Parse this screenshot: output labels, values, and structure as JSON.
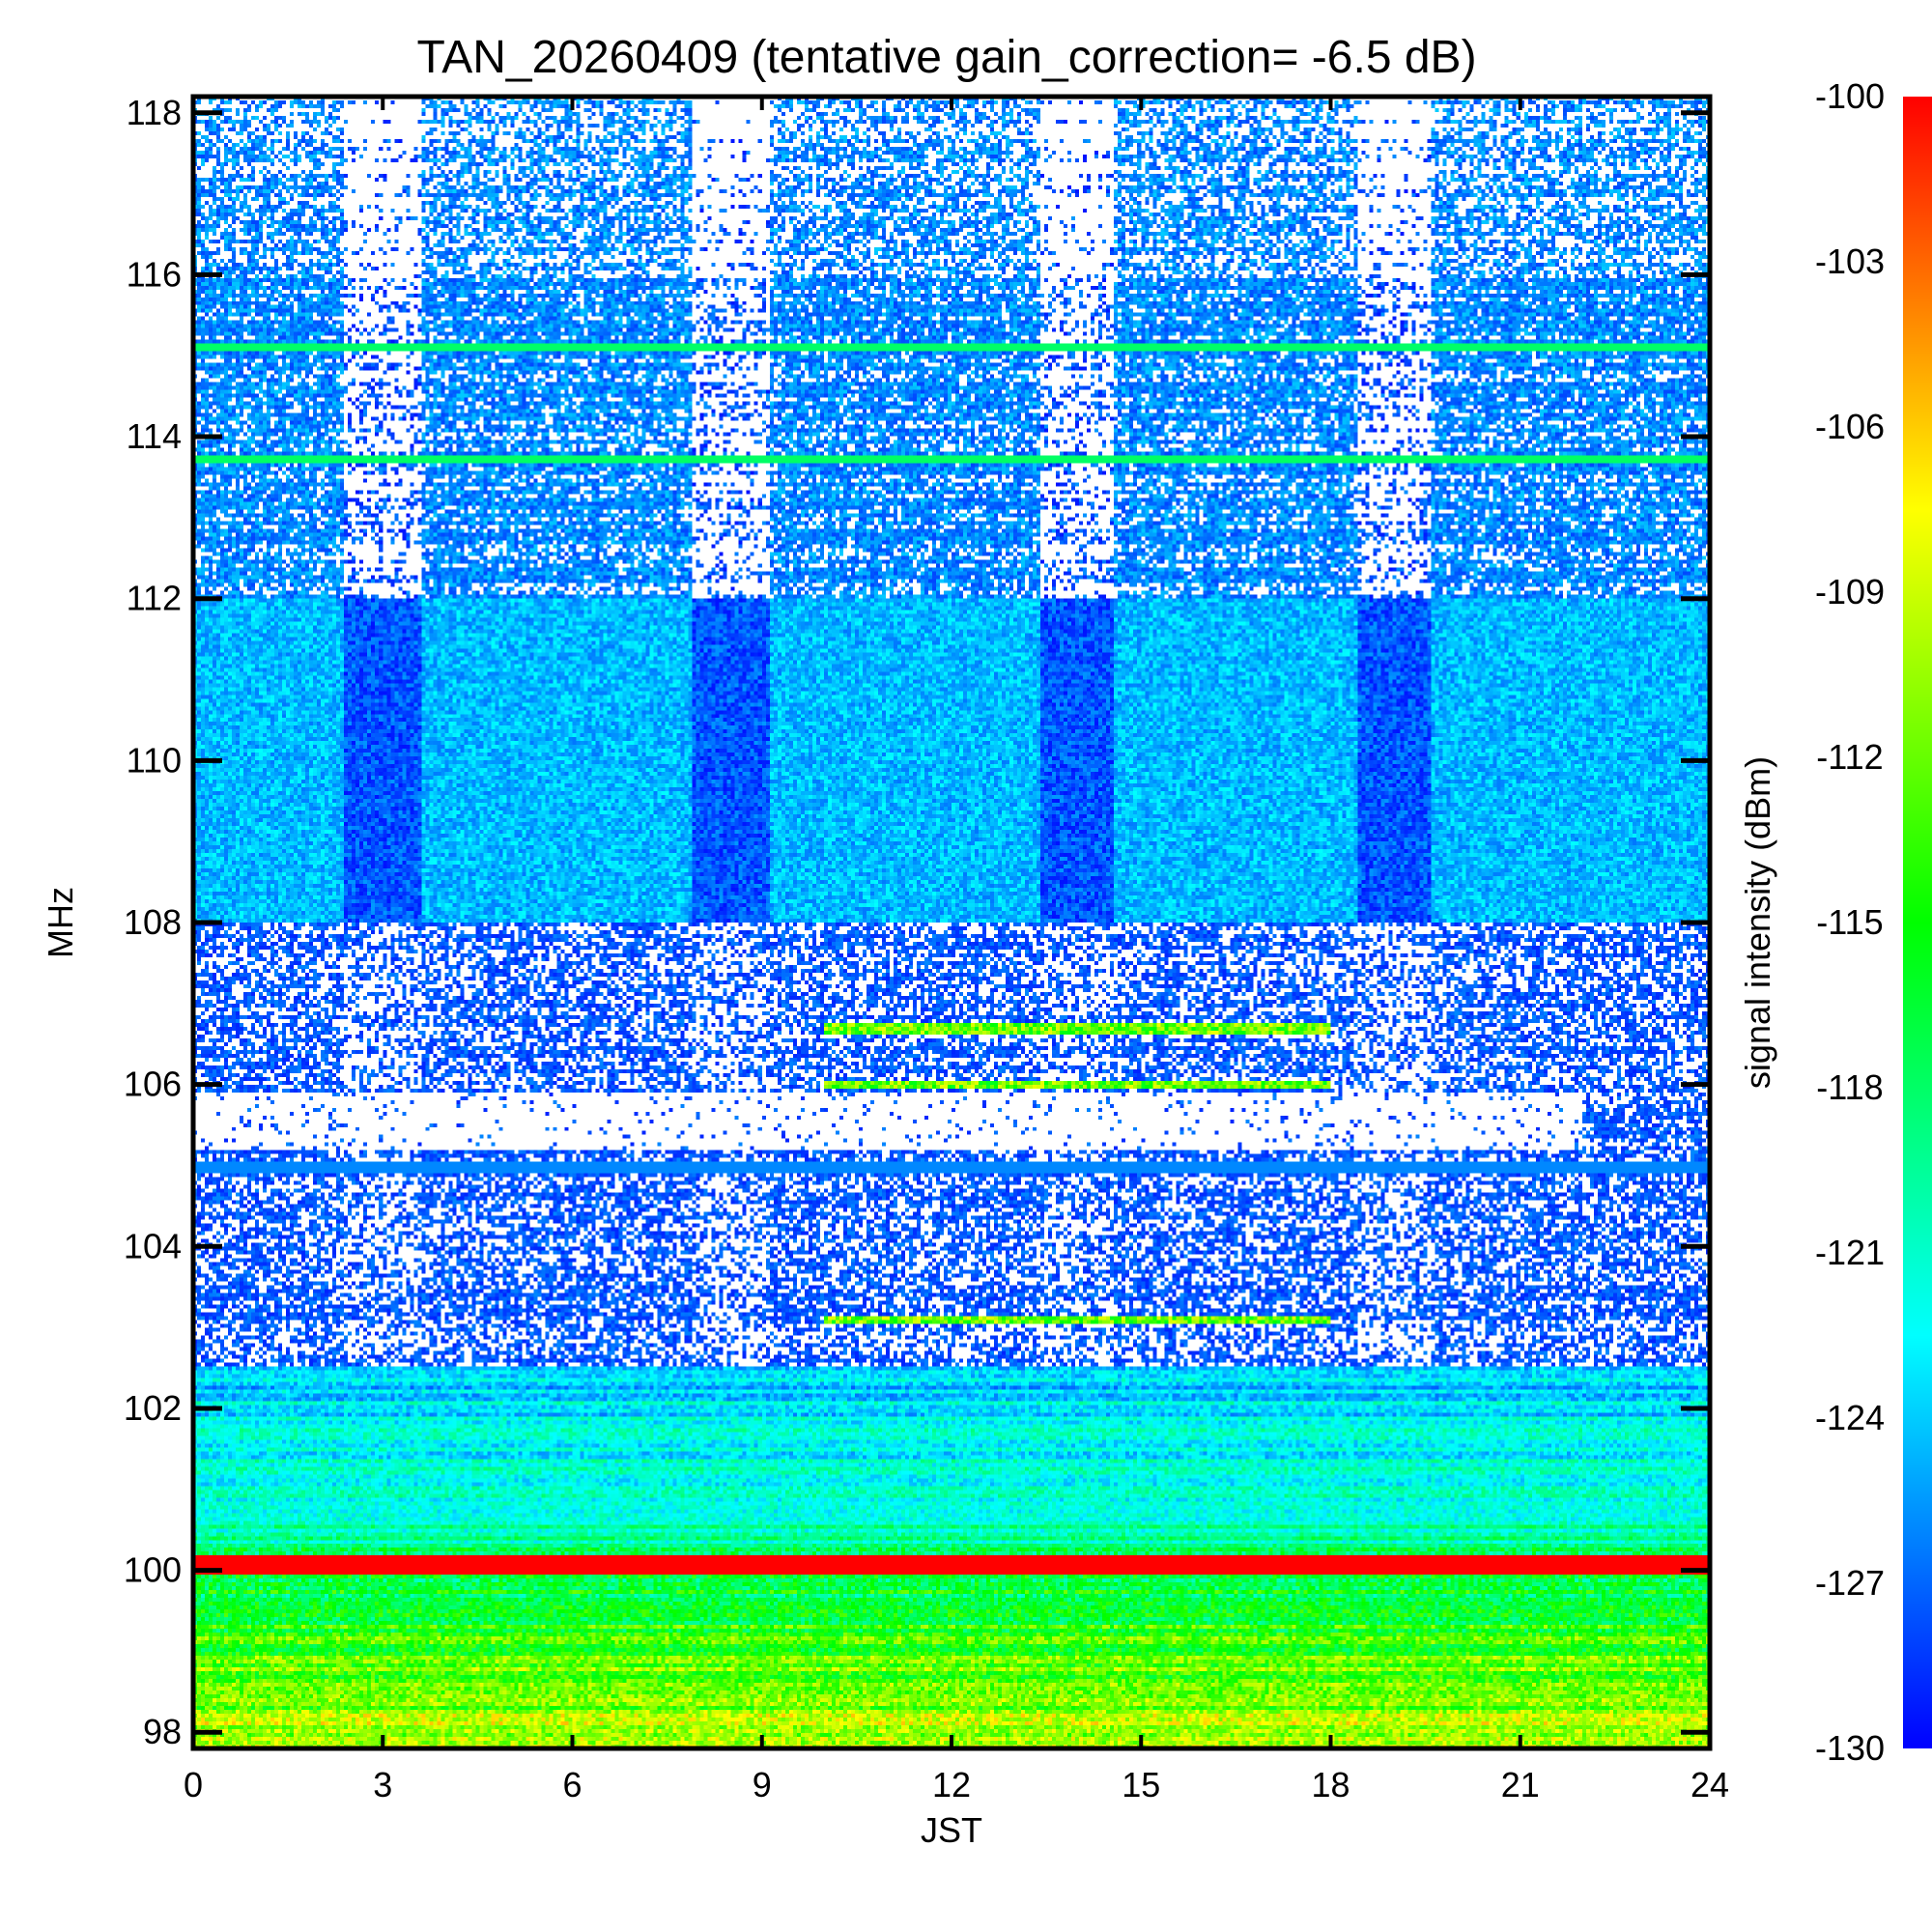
{
  "chart_data": {
    "type": "heatmap",
    "title": "TAN_20260409 (tentative gain_correction= -6.5 dB)",
    "xlabel": "JST",
    "ylabel": "MHz",
    "xlim": [
      0,
      24
    ],
    "ylim": [
      97.8,
      118.2
    ],
    "x_ticks": [
      0,
      3,
      6,
      9,
      12,
      15,
      18,
      21,
      24
    ],
    "x_tick_labels": [
      "0",
      "3",
      "6",
      "9",
      "12",
      "15",
      "18",
      "21",
      "24"
    ],
    "y_ticks": [
      98,
      100,
      102,
      104,
      106,
      108,
      110,
      112,
      114,
      116,
      118
    ],
    "y_tick_labels": [
      "98",
      "100",
      "102",
      "104",
      "106",
      "108",
      "110",
      "112",
      "114",
      "116",
      "118"
    ],
    "colorbar": {
      "label": "signal intensity (dBm)",
      "range": [
        -130,
        -100
      ],
      "ticks": [
        -100,
        -103,
        -106,
        -109,
        -112,
        -115,
        -118,
        -121,
        -124,
        -127,
        -130
      ],
      "tick_labels": [
        "-100",
        "-103",
        "-106",
        "-109",
        "-112",
        "-115",
        "-118",
        "-121",
        "-124",
        "-127",
        "-130"
      ],
      "colormap": [
        "#0000ff",
        "#00ffff",
        "#00ff00",
        "#ffff00",
        "#ff0000"
      ]
    },
    "features": {
      "strong_band_mhz": 100.0,
      "strong_band_dbm": -100,
      "bright_lines_mhz": [
        113.7,
        115.1,
        105.0
      ],
      "fm_band_mhz": [
        97.8,
        108.0
      ],
      "air_band_mhz": [
        108.0,
        118.2
      ],
      "periodic_gaps_jst": [
        3,
        8.5,
        14,
        19
      ]
    }
  }
}
